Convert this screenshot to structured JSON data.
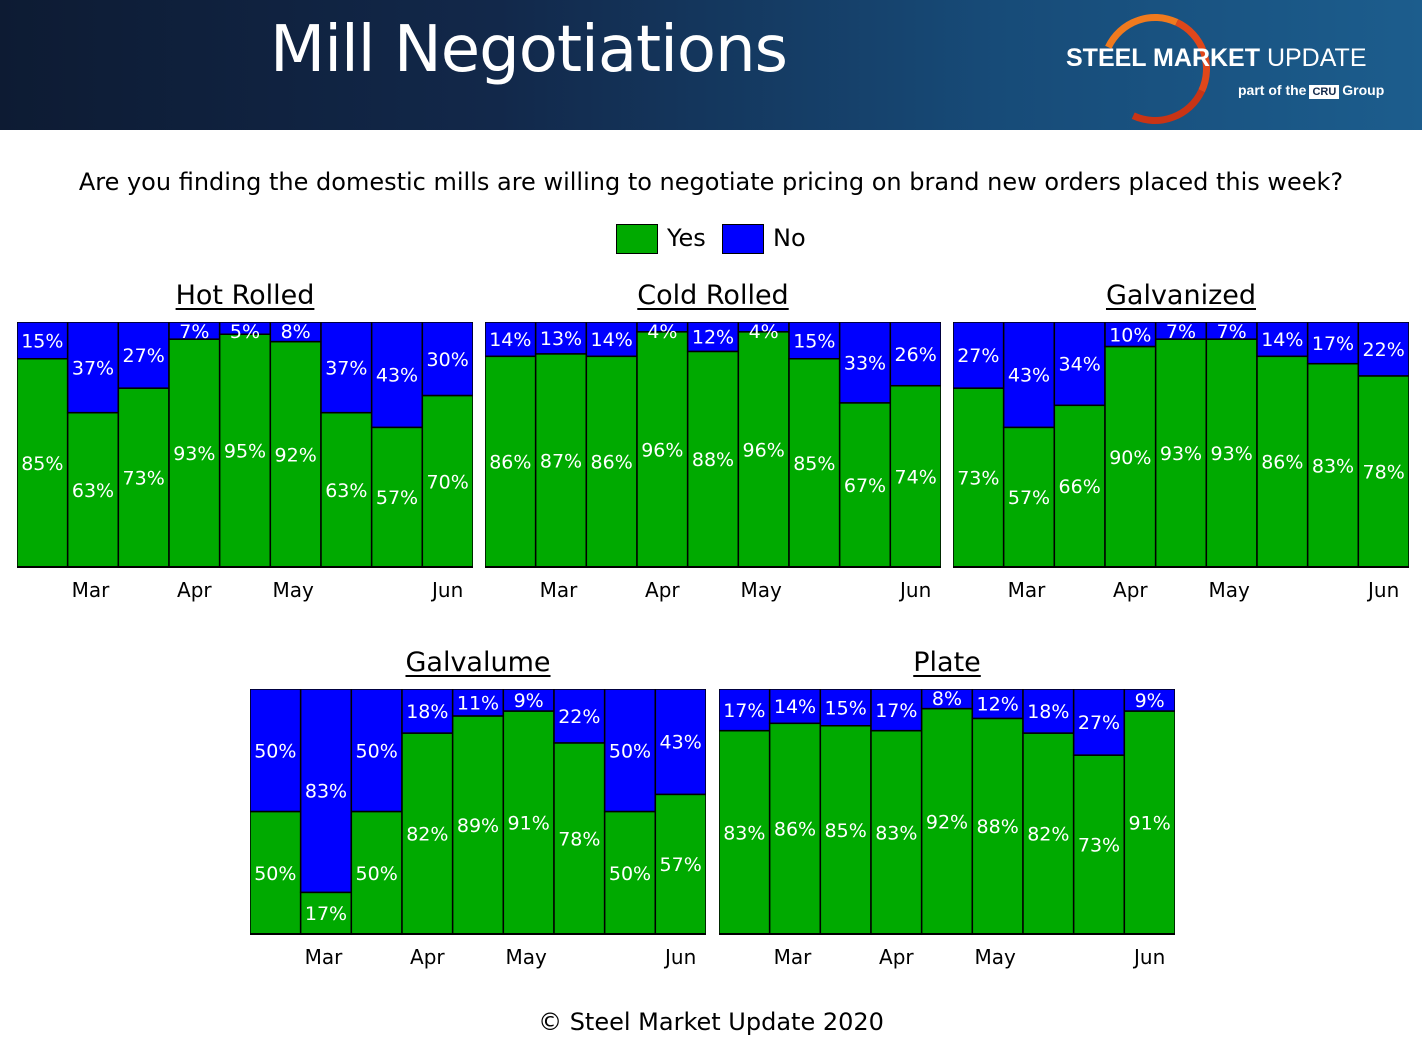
{
  "header": {
    "title": "Mill Negotiations",
    "logo_brand_bold": "STEEL MARKET",
    "logo_brand_rest": "UPDATE",
    "logo_sub_prefix": "part of the",
    "logo_sub_badge": "CRU",
    "logo_sub_suffix": "Group"
  },
  "question": "Are you finding the domestic mills are willing to negotiate pricing on brand new orders placed this week?",
  "legend": {
    "yes": "Yes",
    "no": "No",
    "yes_color": "#00aa00",
    "no_color": "#0000ff"
  },
  "footer": "© Steel Market Update 2020",
  "chart_data": [
    {
      "type": "bar",
      "stacked": true,
      "title": "Hot Rolled",
      "month_labels": [
        "Mar",
        "Apr",
        "May",
        "Jun"
      ],
      "series": [
        {
          "name": "Yes",
          "values": [
            85,
            63,
            73,
            93,
            95,
            92,
            63,
            57,
            70
          ]
        },
        {
          "name": "No",
          "values": [
            15,
            37,
            27,
            7,
            5,
            8,
            37,
            43,
            30
          ]
        }
      ],
      "ylim": [
        0,
        100
      ]
    },
    {
      "type": "bar",
      "stacked": true,
      "title": "Cold Rolled",
      "month_labels": [
        "Mar",
        "Apr",
        "May",
        "Jun"
      ],
      "series": [
        {
          "name": "Yes",
          "values": [
            86,
            87,
            86,
            96,
            88,
            96,
            85,
            67,
            74
          ]
        },
        {
          "name": "No",
          "values": [
            14,
            13,
            14,
            4,
            12,
            4,
            15,
            33,
            26
          ]
        }
      ],
      "ylim": [
        0,
        100
      ]
    },
    {
      "type": "bar",
      "stacked": true,
      "title": "Galvanized",
      "month_labels": [
        "Mar",
        "Apr",
        "May",
        "Jun"
      ],
      "series": [
        {
          "name": "Yes",
          "values": [
            73,
            57,
            66,
            90,
            93,
            93,
            86,
            83,
            78
          ]
        },
        {
          "name": "No",
          "values": [
            27,
            43,
            34,
            10,
            7,
            7,
            14,
            17,
            22
          ]
        }
      ],
      "ylim": [
        0,
        100
      ]
    },
    {
      "type": "bar",
      "stacked": true,
      "title": "Galvalume",
      "month_labels": [
        "Mar",
        "Apr",
        "May",
        "Jun"
      ],
      "series": [
        {
          "name": "Yes",
          "values": [
            50,
            17,
            50,
            82,
            89,
            91,
            78,
            50,
            57
          ]
        },
        {
          "name": "No",
          "values": [
            50,
            83,
            50,
            18,
            11,
            9,
            22,
            50,
            43
          ]
        }
      ],
      "ylim": [
        0,
        100
      ]
    },
    {
      "type": "bar",
      "stacked": true,
      "title": "Plate",
      "month_labels": [
        "Mar",
        "Apr",
        "May",
        "Jun"
      ],
      "series": [
        {
          "name": "Yes",
          "values": [
            83,
            86,
            85,
            83,
            92,
            88,
            82,
            73,
            91
          ]
        },
        {
          "name": "No",
          "values": [
            17,
            14,
            15,
            17,
            8,
            12,
            18,
            27,
            9
          ]
        }
      ],
      "ylim": [
        0,
        100
      ]
    }
  ]
}
